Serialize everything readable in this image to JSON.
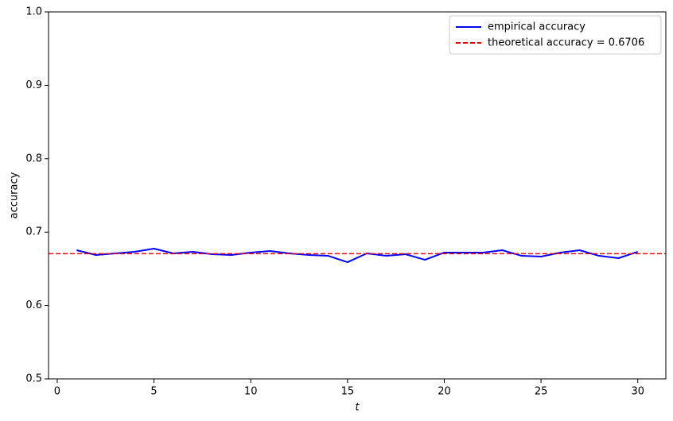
{
  "chart_data": {
    "type": "line",
    "xlabel": "t",
    "ylabel": "accuracy",
    "x": [
      1,
      2,
      3,
      4,
      5,
      6,
      7,
      8,
      9,
      10,
      11,
      12,
      13,
      14,
      15,
      16,
      17,
      18,
      19,
      20,
      21,
      22,
      23,
      24,
      25,
      26,
      27,
      28,
      29,
      30
    ],
    "series": [
      {
        "name": "empirical accuracy",
        "color": "#0000ff",
        "values": [
          0.6753,
          0.6688,
          0.671,
          0.6732,
          0.6775,
          0.671,
          0.6732,
          0.6699,
          0.6688,
          0.6721,
          0.6742,
          0.671,
          0.6688,
          0.6677,
          0.659,
          0.671,
          0.6677,
          0.6699,
          0.6623,
          0.6721,
          0.6721,
          0.6721,
          0.6753,
          0.6677,
          0.6667,
          0.6721,
          0.6753,
          0.6677,
          0.6645,
          0.6732
        ]
      }
    ],
    "reference_lines": [
      {
        "name": "theoretical accuracy = 0.6706",
        "color": "#ff0000",
        "value": 0.6706,
        "style": "dashed"
      }
    ],
    "xlim": [
      -0.45,
      31.45
    ],
    "ylim": [
      0.5,
      1.0
    ],
    "xticks": [
      0,
      5,
      10,
      15,
      20,
      25,
      30
    ],
    "yticks": [
      0.5,
      0.6,
      0.7,
      0.8,
      0.9,
      {
        "value": 1.0,
        "label": "1.0"
      }
    ],
    "legend": "upper right",
    "grid": false
  }
}
